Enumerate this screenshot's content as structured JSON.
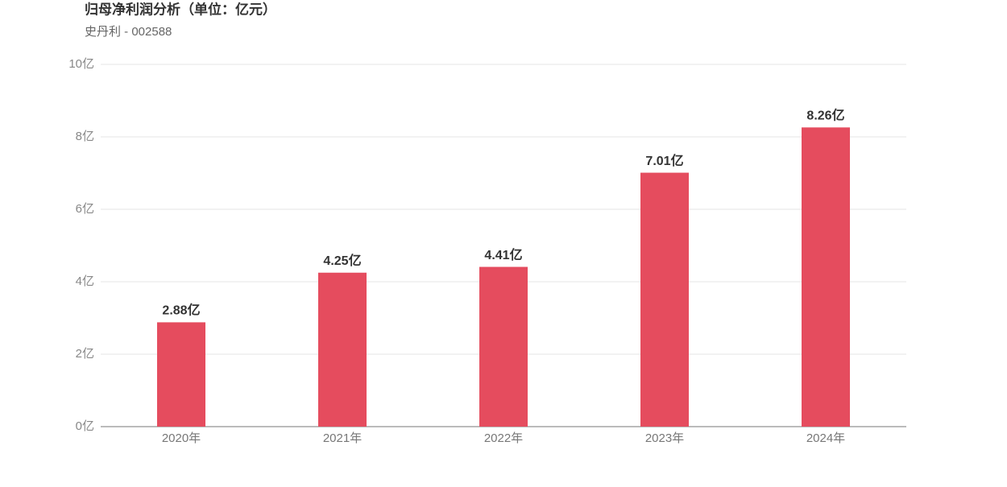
{
  "chart_data": {
    "type": "bar",
    "title": "归母净利润分析（单位：亿元）",
    "subtitle": "史丹利 - 002588",
    "categories": [
      "2020年",
      "2021年",
      "2022年",
      "2023年",
      "2024年"
    ],
    "values": [
      2.88,
      4.25,
      4.41,
      7.01,
      8.26
    ],
    "value_labels": [
      "2.88亿",
      "4.25亿",
      "4.41亿",
      "7.01亿",
      "8.26亿"
    ],
    "color": "#e54c5e",
    "ylim": [
      0,
      10
    ],
    "yticks": [
      {
        "value": 0,
        "label": "0亿"
      },
      {
        "value": 2,
        "label": "2亿"
      },
      {
        "value": 4,
        "label": "4亿"
      },
      {
        "value": 6,
        "label": "6亿"
      },
      {
        "value": 8,
        "label": "8亿"
      },
      {
        "value": 10,
        "label": "10亿"
      }
    ],
    "grid": true
  }
}
